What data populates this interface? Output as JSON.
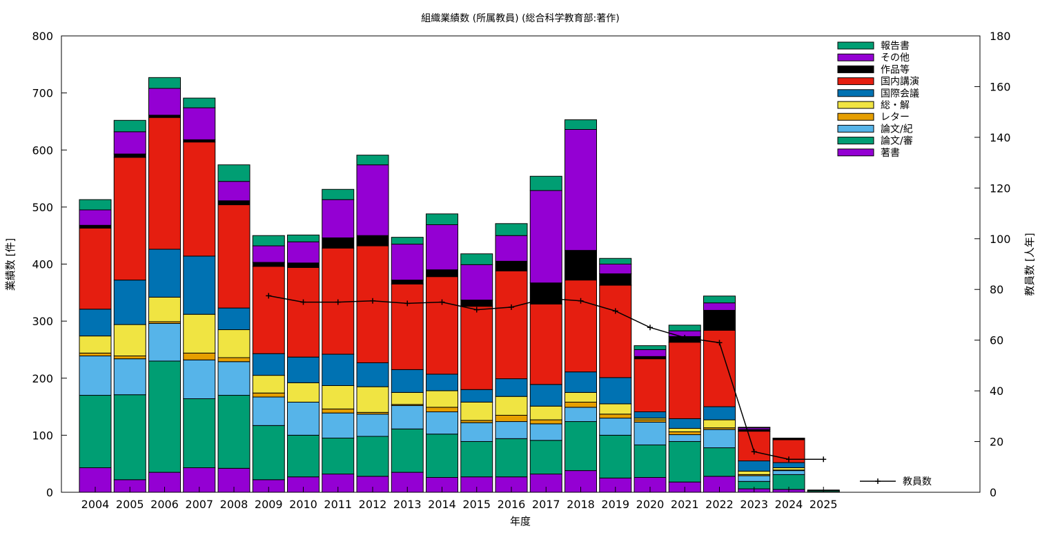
{
  "chart_data": {
    "type": "bar",
    "stacked": true,
    "title": "組織業績数 (所属教員) (総合科学教育部:著作)",
    "xlabel": "年度",
    "ylabel": "業績数 [件]",
    "y2label": "教員数 [人年]",
    "ylim": [
      0,
      800
    ],
    "y2lim": [
      0,
      180
    ],
    "yticks": [
      "0",
      "100",
      "200",
      "300",
      "400",
      "500",
      "600",
      "700",
      "800"
    ],
    "y2ticks": [
      "0",
      "20",
      "40",
      "60",
      "80",
      "100",
      "120",
      "140",
      "160",
      "180"
    ],
    "grid": false,
    "legend_position": "top-right",
    "categories": [
      "2004",
      "2005",
      "2006",
      "2007",
      "2008",
      "2009",
      "2010",
      "2011",
      "2012",
      "2013",
      "2014",
      "2015",
      "2016",
      "2017",
      "2018",
      "2019",
      "2020",
      "2021",
      "2022",
      "2023",
      "2024",
      "2025"
    ],
    "series": [
      {
        "name": "著書",
        "color": "#9400d3",
        "values": [
          43,
          22,
          35,
          43,
          42,
          22,
          27,
          32,
          28,
          35,
          26,
          27,
          27,
          32,
          38,
          25,
          26,
          18,
          28,
          6,
          5,
          1
        ]
      },
      {
        "name": "論文/審",
        "color": "#009e73",
        "values": [
          127,
          149,
          195,
          121,
          128,
          95,
          73,
          63,
          70,
          76,
          76,
          62,
          67,
          59,
          86,
          75,
          57,
          71,
          50,
          13,
          26,
          2
        ]
      },
      {
        "name": "論文/紀",
        "color": "#56b4e9",
        "values": [
          69,
          63,
          66,
          68,
          59,
          50,
          58,
          44,
          39,
          41,
          39,
          33,
          30,
          29,
          25,
          30,
          40,
          12,
          32,
          10,
          7,
          0
        ]
      },
      {
        "name": "レター",
        "color": "#e69f00",
        "values": [
          5,
          5,
          3,
          12,
          7,
          7,
          0,
          7,
          3,
          2,
          8,
          4,
          11,
          7,
          9,
          7,
          4,
          5,
          3,
          2,
          1,
          0
        ]
      },
      {
        "name": "総・解",
        "color": "#f0e442",
        "values": [
          30,
          55,
          43,
          68,
          49,
          31,
          34,
          41,
          45,
          21,
          29,
          32,
          33,
          24,
          17,
          18,
          3,
          6,
          14,
          6,
          4,
          0
        ]
      },
      {
        "name": "国際会議",
        "color": "#0072b2",
        "values": [
          47,
          78,
          84,
          102,
          38,
          38,
          45,
          55,
          42,
          40,
          29,
          22,
          31,
          38,
          36,
          46,
          11,
          17,
          23,
          18,
          9,
          0
        ]
      },
      {
        "name": "国内講演",
        "color": "#e51e10",
        "values": [
          142,
          215,
          231,
          200,
          181,
          153,
          157,
          186,
          205,
          150,
          171,
          146,
          189,
          141,
          161,
          162,
          93,
          134,
          134,
          52,
          40,
          1
        ]
      },
      {
        "name": "作品等",
        "color": "#000000",
        "values": [
          5,
          6,
          4,
          4,
          7,
          7,
          8,
          18,
          18,
          7,
          12,
          11,
          17,
          37,
          52,
          20,
          4,
          10,
          35,
          3,
          2,
          0
        ]
      },
      {
        "name": "その他",
        "color": "#9400d3",
        "values": [
          27,
          39,
          47,
          56,
          34,
          29,
          37,
          67,
          124,
          63,
          79,
          62,
          45,
          162,
          212,
          17,
          12,
          10,
          13,
          3,
          0,
          0
        ]
      },
      {
        "name": "報告書",
        "color": "#009e73",
        "values": [
          18,
          20,
          19,
          17,
          29,
          18,
          12,
          18,
          17,
          12,
          19,
          19,
          21,
          25,
          17,
          10,
          7,
          10,
          12,
          1,
          1,
          0
        ]
      }
    ],
    "line_series": {
      "name": "教員数",
      "axis": "right",
      "x": [
        "2009",
        "2010",
        "2011",
        "2012",
        "2013",
        "2014",
        "2015",
        "2016",
        "2017",
        "2018",
        "2019",
        "2020",
        "2021",
        "2022",
        "2023",
        "2024",
        "2025"
      ],
      "values": [
        77.5,
        75,
        75,
        75.5,
        74.5,
        75,
        72,
        73,
        76.5,
        75.5,
        71.5,
        65,
        61,
        59,
        16,
        13,
        13
      ]
    }
  }
}
